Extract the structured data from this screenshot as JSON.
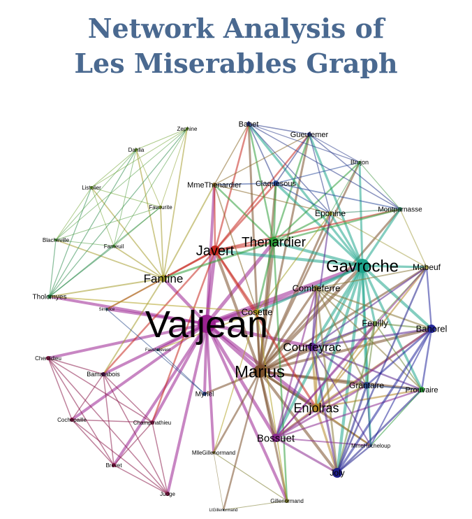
{
  "title": {
    "line1": "Network Analysis of",
    "line2": "Les Miserables Graph"
  },
  "graph": {
    "nodes": [
      {
        "id": "Valjean",
        "label": "Valjean",
        "color": "#9b2291"
      },
      {
        "id": "Marius",
        "label": "Marius",
        "color": "#7a4f2a"
      },
      {
        "id": "Gavroche",
        "label": "Gavroche",
        "color": "#1fa58d"
      },
      {
        "id": "Javert",
        "label": "Javert",
        "color": "#c6281f"
      },
      {
        "id": "Thenardier",
        "label": "Thenardier",
        "color": "#2f9e3a"
      },
      {
        "id": "Fantine",
        "label": "Fantine",
        "color": "#a49b2a"
      },
      {
        "id": "Enjolras",
        "label": "Enjolras",
        "color": "#b5892a"
      },
      {
        "id": "Courfeyrac",
        "label": "Courfeyrac",
        "color": "#5a2690"
      },
      {
        "id": "Bossuet",
        "label": "Bossuet",
        "color": "#8a2a8f"
      },
      {
        "id": "Cosette",
        "label": "Cosette",
        "color": "#b0a020"
      },
      {
        "id": "Combeferre",
        "label": "Combeferre",
        "color": "#8a7a3a"
      },
      {
        "id": "Bahorel",
        "label": "Bahorel",
        "color": "#23279a"
      },
      {
        "id": "Feuilly",
        "label": "Feuilly",
        "color": "#6a8a3a"
      },
      {
        "id": "Joly",
        "label": "Joly",
        "color": "#1f1f8a"
      },
      {
        "id": "Mabeuf",
        "label": "Mabeuf",
        "color": "#a8a24a"
      },
      {
        "id": "Eponine",
        "label": "Eponine",
        "color": "#a4a02a"
      },
      {
        "id": "Grantaire",
        "label": "Grantaire",
        "color": "#2a4a8a"
      },
      {
        "id": "Prouvaire",
        "label": "Prouvaire",
        "color": "#2a9a3a"
      },
      {
        "id": "Babet",
        "label": "Babet",
        "color": "#2a3a8a"
      },
      {
        "id": "Gueulemer",
        "label": "Gueulemer",
        "color": "#2a3a8a"
      },
      {
        "id": "Claquesous",
        "label": "Claquesous",
        "color": "#2a4a9a"
      },
      {
        "id": "Brujon",
        "label": "Brujon",
        "color": "#4a9a4a"
      },
      {
        "id": "Montparnasse",
        "label": "Montparnasse",
        "color": "#3a8a6a"
      },
      {
        "id": "MmeThenardier",
        "label": "MmeThenardier",
        "color": "#8a6a2a"
      },
      {
        "id": "Zephine",
        "label": "Zephine",
        "color": "#6aa02a"
      },
      {
        "id": "Dahlia",
        "label": "Dahlia",
        "color": "#6aa02a"
      },
      {
        "id": "Listolier",
        "label": "Listolier",
        "color": "#6aa02a"
      },
      {
        "id": "Favourite",
        "label": "Favourite",
        "color": "#8aa02a"
      },
      {
        "id": "Blacheville",
        "label": "Blacheville",
        "color": "#4a9a3a"
      },
      {
        "id": "Fameuil",
        "label": "Fameuil",
        "color": "#4a9a3a"
      },
      {
        "id": "Tholomyes",
        "label": "Tholomyes",
        "color": "#2a8a4a"
      },
      {
        "id": "Champmathieu",
        "label": "Champmathieu",
        "color": "#8a1a4a"
      },
      {
        "id": "Chenildieu",
        "label": "Chenildieu",
        "color": "#8a1a4a"
      },
      {
        "id": "Cochepaille",
        "label": "Cochepaille",
        "color": "#8a1a4a"
      },
      {
        "id": "Bamatabois",
        "label": "Bamatabois",
        "color": "#5a1a5a"
      },
      {
        "id": "Brevet",
        "label": "Brevet",
        "color": "#8a1a4a"
      },
      {
        "id": "Judge",
        "label": "Judge",
        "color": "#8a1a4a"
      },
      {
        "id": "Myriel",
        "label": "Myriel",
        "color": "#2a4a8a"
      },
      {
        "id": "MlleGillenormand",
        "label": "MlleGillenormand",
        "color": "#7a6a2a"
      },
      {
        "id": "Gillenormand",
        "label": "Gillenormand",
        "color": "#7a7a2a"
      },
      {
        "id": "LtGillenormand",
        "label": "LtGillenormand",
        "color": "#3a5a8a"
      },
      {
        "id": "MmeHucheloup",
        "label": "MmeHucheloup",
        "color": "#3a5a8a"
      },
      {
        "id": "Fauchelevent",
        "label": "Fauchelevent",
        "color": "#3a6a8a"
      },
      {
        "id": "Simplice",
        "label": "Simplice",
        "color": "#3a7a8a"
      }
    ],
    "edges": [
      [
        "Valjean",
        "Marius"
      ],
      [
        "Valjean",
        "Javert"
      ],
      [
        "Valjean",
        "Thenardier"
      ],
      [
        "Valjean",
        "Fantine"
      ],
      [
        "Valjean",
        "Cosette"
      ],
      [
        "Valjean",
        "Gavroche"
      ],
      [
        "Valjean",
        "Enjolras"
      ],
      [
        "Valjean",
        "Myriel"
      ],
      [
        "Valjean",
        "Bossuet"
      ],
      [
        "Valjean",
        "Champmathieu"
      ],
      [
        "Valjean",
        "Bamatabois"
      ],
      [
        "Valjean",
        "Judge"
      ],
      [
        "Valjean",
        "Chenildieu"
      ],
      [
        "Valjean",
        "Cochepaille"
      ],
      [
        "Valjean",
        "Brevet"
      ],
      [
        "Valjean",
        "MmeThenardier"
      ],
      [
        "Valjean",
        "Simplice"
      ],
      [
        "Valjean",
        "Fauchelevent"
      ],
      [
        "Valjean",
        "MlleGillenormand"
      ],
      [
        "Valjean",
        "Gillenormand"
      ],
      [
        "Valjean",
        "Courfeyrac"
      ],
      [
        "Valjean",
        "Tholomyes"
      ],
      [
        "Valjean",
        "Combeferre"
      ],
      [
        "Marius",
        "Cosette"
      ],
      [
        "Marius",
        "Enjolras"
      ],
      [
        "Marius",
        "Courfeyrac"
      ],
      [
        "Marius",
        "Bossuet"
      ],
      [
        "Marius",
        "Gavroche"
      ],
      [
        "Marius",
        "Thenardier"
      ],
      [
        "Marius",
        "Eponine"
      ],
      [
        "Marius",
        "Combeferre"
      ],
      [
        "Marius",
        "Feuilly"
      ],
      [
        "Marius",
        "Bahorel"
      ],
      [
        "Marius",
        "Joly"
      ],
      [
        "Marius",
        "Mabeuf"
      ],
      [
        "Marius",
        "Gillenormand"
      ],
      [
        "Marius",
        "MlleGillenormand"
      ],
      [
        "Marius",
        "Myriel"
      ],
      [
        "Marius",
        "Grantaire"
      ],
      [
        "Marius",
        "Prouvaire"
      ],
      [
        "Marius",
        "LtGillenormand"
      ],
      [
        "Marius",
        "Babet"
      ],
      [
        "Marius",
        "Gueulemer"
      ],
      [
        "Marius",
        "Brujon"
      ],
      [
        "Marius",
        "Montparnasse"
      ],
      [
        "Marius",
        "Claquesous"
      ],
      [
        "Marius",
        "Javert"
      ],
      [
        "Marius",
        "MmeHucheloup"
      ],
      [
        "Gavroche",
        "Enjolras"
      ],
      [
        "Gavroche",
        "Courfeyrac"
      ],
      [
        "Gavroche",
        "Bossuet"
      ],
      [
        "Gavroche",
        "Joly"
      ],
      [
        "Gavroche",
        "Combeferre"
      ],
      [
        "Gavroche",
        "Feuilly"
      ],
      [
        "Gavroche",
        "Bahorel"
      ],
      [
        "Gavroche",
        "Mabeuf"
      ],
      [
        "Gavroche",
        "Grantaire"
      ],
      [
        "Gavroche",
        "Prouvaire"
      ],
      [
        "Gavroche",
        "Thenardier"
      ],
      [
        "Gavroche",
        "Javert"
      ],
      [
        "Gavroche",
        "Babet"
      ],
      [
        "Gavroche",
        "Montparnasse"
      ],
      [
        "Gavroche",
        "Gueulemer"
      ],
      [
        "Gavroche",
        "Brujon"
      ],
      [
        "Gavroche",
        "Claquesous"
      ],
      [
        "Gavroche",
        "MmeHucheloup"
      ],
      [
        "Gavroche",
        "Eponine"
      ],
      [
        "Gavroche",
        "Cosette"
      ],
      [
        "Javert",
        "Fantine"
      ],
      [
        "Javert",
        "Thenardier"
      ],
      [
        "Javert",
        "Enjolras"
      ],
      [
        "Javert",
        "Cosette"
      ],
      [
        "Javert",
        "MmeThenardier"
      ],
      [
        "Javert",
        "Babet"
      ],
      [
        "Javert",
        "Gueulemer"
      ],
      [
        "Javert",
        "Claquesous"
      ],
      [
        "Javert",
        "Montparnasse"
      ],
      [
        "Javert",
        "Bamatabois"
      ],
      [
        "Javert",
        "Simplice"
      ],
      [
        "Javert",
        "Champmathieu"
      ],
      [
        "Thenardier",
        "MmeThenardier"
      ],
      [
        "Thenardier",
        "Cosette"
      ],
      [
        "Thenardier",
        "Eponine"
      ],
      [
        "Thenardier",
        "Babet"
      ],
      [
        "Thenardier",
        "Gueulemer"
      ],
      [
        "Thenardier",
        "Claquesous"
      ],
      [
        "Thenardier",
        "Brujon"
      ],
      [
        "Thenardier",
        "Montparnasse"
      ],
      [
        "Thenardier",
        "Fantine"
      ],
      [
        "Thenardier",
        "Gillenormand"
      ],
      [
        "Fantine",
        "Tholomyes"
      ],
      [
        "Fantine",
        "Listolier"
      ],
      [
        "Fantine",
        "Fameuil"
      ],
      [
        "Fantine",
        "Blacheville"
      ],
      [
        "Fantine",
        "Favourite"
      ],
      [
        "Fantine",
        "Dahlia"
      ],
      [
        "Fantine",
        "Zephine"
      ],
      [
        "Fantine",
        "MmeThenardier"
      ],
      [
        "Fantine",
        "Bamatabois"
      ],
      [
        "Fantine",
        "Simplice"
      ],
      [
        "Tholomyes",
        "Listolier"
      ],
      [
        "Tholomyes",
        "Fameuil"
      ],
      [
        "Tholomyes",
        "Blacheville"
      ],
      [
        "Tholomyes",
        "Favourite"
      ],
      [
        "Tholomyes",
        "Dahlia"
      ],
      [
        "Tholomyes",
        "Zephine"
      ],
      [
        "Listolier",
        "Fameuil"
      ],
      [
        "Listolier",
        "Blacheville"
      ],
      [
        "Listolier",
        "Favourite"
      ],
      [
        "Listolier",
        "Dahlia"
      ],
      [
        "Listolier",
        "Zephine"
      ],
      [
        "Fameuil",
        "Blacheville"
      ],
      [
        "Fameuil",
        "Favourite"
      ],
      [
        "Fameuil",
        "Dahlia"
      ],
      [
        "Fameuil",
        "Zephine"
      ],
      [
        "Blacheville",
        "Favourite"
      ],
      [
        "Blacheville",
        "Dahlia"
      ],
      [
        "Blacheville",
        "Zephine"
      ],
      [
        "Favourite",
        "Dahlia"
      ],
      [
        "Favourite",
        "Zephine"
      ],
      [
        "Dahlia",
        "Zephine"
      ],
      [
        "Enjolras",
        "Courfeyrac"
      ],
      [
        "Enjolras",
        "Combeferre"
      ],
      [
        "Enjolras",
        "Bossuet"
      ],
      [
        "Enjolras",
        "Joly"
      ],
      [
        "Enjolras",
        "Feuilly"
      ],
      [
        "Enjolras",
        "Bahorel"
      ],
      [
        "Enjolras",
        "Grantaire"
      ],
      [
        "Enjolras",
        "Prouvaire"
      ],
      [
        "Enjolras",
        "Mabeuf"
      ],
      [
        "Enjolras",
        "MmeHucheloup"
      ],
      [
        "Courfeyrac",
        "Combeferre"
      ],
      [
        "Courfeyrac",
        "Bossuet"
      ],
      [
        "Courfeyrac",
        "Joly"
      ],
      [
        "Courfeyrac",
        "Feuilly"
      ],
      [
        "Courfeyrac",
        "Bahorel"
      ],
      [
        "Courfeyrac",
        "Grantaire"
      ],
      [
        "Courfeyrac",
        "Prouvaire"
      ],
      [
        "Courfeyrac",
        "Mabeuf"
      ],
      [
        "Courfeyrac",
        "Eponine"
      ],
      [
        "Courfeyrac",
        "MmeHucheloup"
      ],
      [
        "Bossuet",
        "Joly"
      ],
      [
        "Bossuet",
        "Combeferre"
      ],
      [
        "Bossuet",
        "Feuilly"
      ],
      [
        "Bossuet",
        "Bahorel"
      ],
      [
        "Bossuet",
        "Grantaire"
      ],
      [
        "Bossuet",
        "Prouvaire"
      ],
      [
        "Bossuet",
        "Mabeuf"
      ],
      [
        "Bossuet",
        "MmeHucheloup"
      ],
      [
        "Combeferre",
        "Joly"
      ],
      [
        "Combeferre",
        "Feuilly"
      ],
      [
        "Combeferre",
        "Bahorel"
      ],
      [
        "Combeferre",
        "Grantaire"
      ],
      [
        "Combeferre",
        "Prouvaire"
      ],
      [
        "Combeferre",
        "Mabeuf"
      ],
      [
        "Feuilly",
        "Joly"
      ],
      [
        "Feuilly",
        "Bahorel"
      ],
      [
        "Feuilly",
        "Grantaire"
      ],
      [
        "Feuilly",
        "Prouvaire"
      ],
      [
        "Feuilly",
        "Mabeuf"
      ],
      [
        "Bahorel",
        "Joly"
      ],
      [
        "Bahorel",
        "Grantaire"
      ],
      [
        "Bahorel",
        "Prouvaire"
      ],
      [
        "Bahorel",
        "Mabeuf"
      ],
      [
        "Bahorel",
        "MmeHucheloup"
      ],
      [
        "Joly",
        "Grantaire"
      ],
      [
        "Joly",
        "Prouvaire"
      ],
      [
        "Joly",
        "Mabeuf"
      ],
      [
        "Joly",
        "MmeHucheloup"
      ],
      [
        "Grantaire",
        "Prouvaire"
      ],
      [
        "Grantaire",
        "MmeHucheloup"
      ],
      [
        "Mabeuf",
        "Eponine"
      ],
      [
        "Mabeuf",
        "Montparnasse"
      ],
      [
        "Babet",
        "Gueulemer"
      ],
      [
        "Babet",
        "Claquesous"
      ],
      [
        "Babet",
        "Brujon"
      ],
      [
        "Babet",
        "Montparnasse"
      ],
      [
        "Babet",
        "Eponine"
      ],
      [
        "Gueulemer",
        "Claquesous"
      ],
      [
        "Gueulemer",
        "Brujon"
      ],
      [
        "Gueulemer",
        "Montparnasse"
      ],
      [
        "Gueulemer",
        "Eponine"
      ],
      [
        "Claquesous",
        "Brujon"
      ],
      [
        "Claquesous",
        "Montparnasse"
      ],
      [
        "Claquesous",
        "Eponine"
      ],
      [
        "Claquesous",
        "MmeThenardier"
      ],
      [
        "Brujon",
        "Montparnasse"
      ],
      [
        "Brujon",
        "Eponine"
      ],
      [
        "Montparnasse",
        "Eponine"
      ],
      [
        "MmeThenardier",
        "Eponine"
      ],
      [
        "MmeThenardier",
        "Cosette"
      ],
      [
        "MmeThenardier",
        "Babet"
      ],
      [
        "MmeThenardier",
        "Gueulemer"
      ],
      [
        "Cosette",
        "Gillenormand"
      ],
      [
        "Cosette",
        "MlleGillenormand"
      ],
      [
        "Cosette",
        "Tholomyes"
      ],
      [
        "Cosette",
        "Fauchelevent"
      ],
      [
        "Gillenormand",
        "MlleGillenormand"
      ],
      [
        "Gillenormand",
        "LtGillenormand"
      ],
      [
        "MlleGillenormand",
        "LtGillenormand"
      ],
      [
        "Champmathieu",
        "Chenildieu"
      ],
      [
        "Champmathieu",
        "Cochepaille"
      ],
      [
        "Champmathieu",
        "Brevet"
      ],
      [
        "Champmathieu",
        "Judge"
      ],
      [
        "Champmathieu",
        "Bamatabois"
      ],
      [
        "Chenildieu",
        "Cochepaille"
      ],
      [
        "Chenildieu",
        "Brevet"
      ],
      [
        "Chenildieu",
        "Judge"
      ],
      [
        "Chenildieu",
        "Bamatabois"
      ],
      [
        "Cochepaille",
        "Brevet"
      ],
      [
        "Cochepaille",
        "Judge"
      ],
      [
        "Cochepaille",
        "Bamatabois"
      ],
      [
        "Brevet",
        "Judge"
      ],
      [
        "Brevet",
        "Bamatabois"
      ],
      [
        "Judge",
        "Bamatabois"
      ],
      [
        "Myriel",
        "Simplice"
      ],
      [
        "Myriel",
        "Fauchelevent"
      ],
      [
        "Eponine",
        "Cosette"
      ],
      [
        "Prouvaire",
        "MmeHucheloup"
      ]
    ]
  }
}
